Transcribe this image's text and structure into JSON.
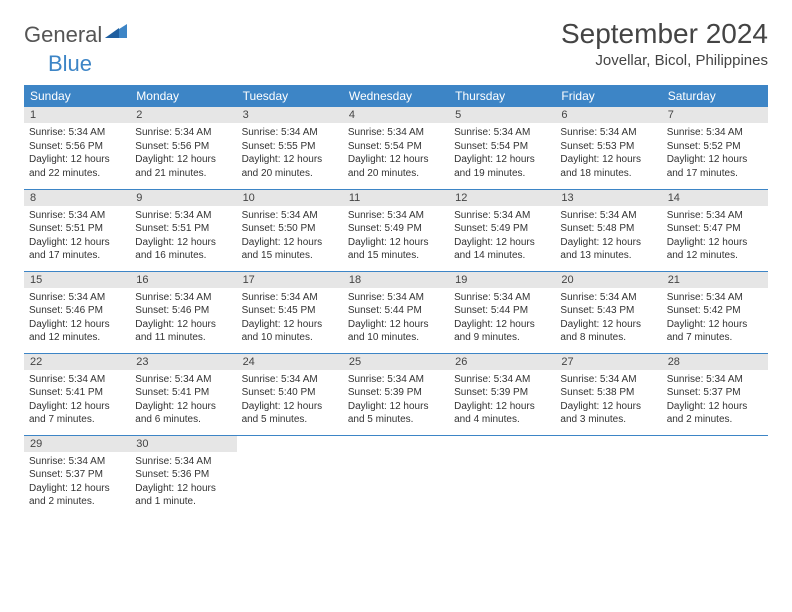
{
  "brand": {
    "part1": "General",
    "part2": "Blue"
  },
  "title": "September 2024",
  "location": "Jovellar, Bicol, Philippines",
  "colors": {
    "header_bg": "#3d85c6",
    "header_text": "#ffffff",
    "daynum_bg": "#e6e6e6",
    "row_border": "#3d85c6",
    "text": "#333333",
    "logo_gray": "#555555",
    "logo_blue": "#3d85c6"
  },
  "day_headers": [
    "Sunday",
    "Monday",
    "Tuesday",
    "Wednesday",
    "Thursday",
    "Friday",
    "Saturday"
  ],
  "weeks": [
    [
      {
        "n": "1",
        "sr": "Sunrise: 5:34 AM",
        "ss": "Sunset: 5:56 PM",
        "dl": "Daylight: 12 hours and 22 minutes."
      },
      {
        "n": "2",
        "sr": "Sunrise: 5:34 AM",
        "ss": "Sunset: 5:56 PM",
        "dl": "Daylight: 12 hours and 21 minutes."
      },
      {
        "n": "3",
        "sr": "Sunrise: 5:34 AM",
        "ss": "Sunset: 5:55 PM",
        "dl": "Daylight: 12 hours and 20 minutes."
      },
      {
        "n": "4",
        "sr": "Sunrise: 5:34 AM",
        "ss": "Sunset: 5:54 PM",
        "dl": "Daylight: 12 hours and 20 minutes."
      },
      {
        "n": "5",
        "sr": "Sunrise: 5:34 AM",
        "ss": "Sunset: 5:54 PM",
        "dl": "Daylight: 12 hours and 19 minutes."
      },
      {
        "n": "6",
        "sr": "Sunrise: 5:34 AM",
        "ss": "Sunset: 5:53 PM",
        "dl": "Daylight: 12 hours and 18 minutes."
      },
      {
        "n": "7",
        "sr": "Sunrise: 5:34 AM",
        "ss": "Sunset: 5:52 PM",
        "dl": "Daylight: 12 hours and 17 minutes."
      }
    ],
    [
      {
        "n": "8",
        "sr": "Sunrise: 5:34 AM",
        "ss": "Sunset: 5:51 PM",
        "dl": "Daylight: 12 hours and 17 minutes."
      },
      {
        "n": "9",
        "sr": "Sunrise: 5:34 AM",
        "ss": "Sunset: 5:51 PM",
        "dl": "Daylight: 12 hours and 16 minutes."
      },
      {
        "n": "10",
        "sr": "Sunrise: 5:34 AM",
        "ss": "Sunset: 5:50 PM",
        "dl": "Daylight: 12 hours and 15 minutes."
      },
      {
        "n": "11",
        "sr": "Sunrise: 5:34 AM",
        "ss": "Sunset: 5:49 PM",
        "dl": "Daylight: 12 hours and 15 minutes."
      },
      {
        "n": "12",
        "sr": "Sunrise: 5:34 AM",
        "ss": "Sunset: 5:49 PM",
        "dl": "Daylight: 12 hours and 14 minutes."
      },
      {
        "n": "13",
        "sr": "Sunrise: 5:34 AM",
        "ss": "Sunset: 5:48 PM",
        "dl": "Daylight: 12 hours and 13 minutes."
      },
      {
        "n": "14",
        "sr": "Sunrise: 5:34 AM",
        "ss": "Sunset: 5:47 PM",
        "dl": "Daylight: 12 hours and 12 minutes."
      }
    ],
    [
      {
        "n": "15",
        "sr": "Sunrise: 5:34 AM",
        "ss": "Sunset: 5:46 PM",
        "dl": "Daylight: 12 hours and 12 minutes."
      },
      {
        "n": "16",
        "sr": "Sunrise: 5:34 AM",
        "ss": "Sunset: 5:46 PM",
        "dl": "Daylight: 12 hours and 11 minutes."
      },
      {
        "n": "17",
        "sr": "Sunrise: 5:34 AM",
        "ss": "Sunset: 5:45 PM",
        "dl": "Daylight: 12 hours and 10 minutes."
      },
      {
        "n": "18",
        "sr": "Sunrise: 5:34 AM",
        "ss": "Sunset: 5:44 PM",
        "dl": "Daylight: 12 hours and 10 minutes."
      },
      {
        "n": "19",
        "sr": "Sunrise: 5:34 AM",
        "ss": "Sunset: 5:44 PM",
        "dl": "Daylight: 12 hours and 9 minutes."
      },
      {
        "n": "20",
        "sr": "Sunrise: 5:34 AM",
        "ss": "Sunset: 5:43 PM",
        "dl": "Daylight: 12 hours and 8 minutes."
      },
      {
        "n": "21",
        "sr": "Sunrise: 5:34 AM",
        "ss": "Sunset: 5:42 PM",
        "dl": "Daylight: 12 hours and 7 minutes."
      }
    ],
    [
      {
        "n": "22",
        "sr": "Sunrise: 5:34 AM",
        "ss": "Sunset: 5:41 PM",
        "dl": "Daylight: 12 hours and 7 minutes."
      },
      {
        "n": "23",
        "sr": "Sunrise: 5:34 AM",
        "ss": "Sunset: 5:41 PM",
        "dl": "Daylight: 12 hours and 6 minutes."
      },
      {
        "n": "24",
        "sr": "Sunrise: 5:34 AM",
        "ss": "Sunset: 5:40 PM",
        "dl": "Daylight: 12 hours and 5 minutes."
      },
      {
        "n": "25",
        "sr": "Sunrise: 5:34 AM",
        "ss": "Sunset: 5:39 PM",
        "dl": "Daylight: 12 hours and 5 minutes."
      },
      {
        "n": "26",
        "sr": "Sunrise: 5:34 AM",
        "ss": "Sunset: 5:39 PM",
        "dl": "Daylight: 12 hours and 4 minutes."
      },
      {
        "n": "27",
        "sr": "Sunrise: 5:34 AM",
        "ss": "Sunset: 5:38 PM",
        "dl": "Daylight: 12 hours and 3 minutes."
      },
      {
        "n": "28",
        "sr": "Sunrise: 5:34 AM",
        "ss": "Sunset: 5:37 PM",
        "dl": "Daylight: 12 hours and 2 minutes."
      }
    ],
    [
      {
        "n": "29",
        "sr": "Sunrise: 5:34 AM",
        "ss": "Sunset: 5:37 PM",
        "dl": "Daylight: 12 hours and 2 minutes."
      },
      {
        "n": "30",
        "sr": "Sunrise: 5:34 AM",
        "ss": "Sunset: 5:36 PM",
        "dl": "Daylight: 12 hours and 1 minute."
      },
      null,
      null,
      null,
      null,
      null
    ]
  ]
}
